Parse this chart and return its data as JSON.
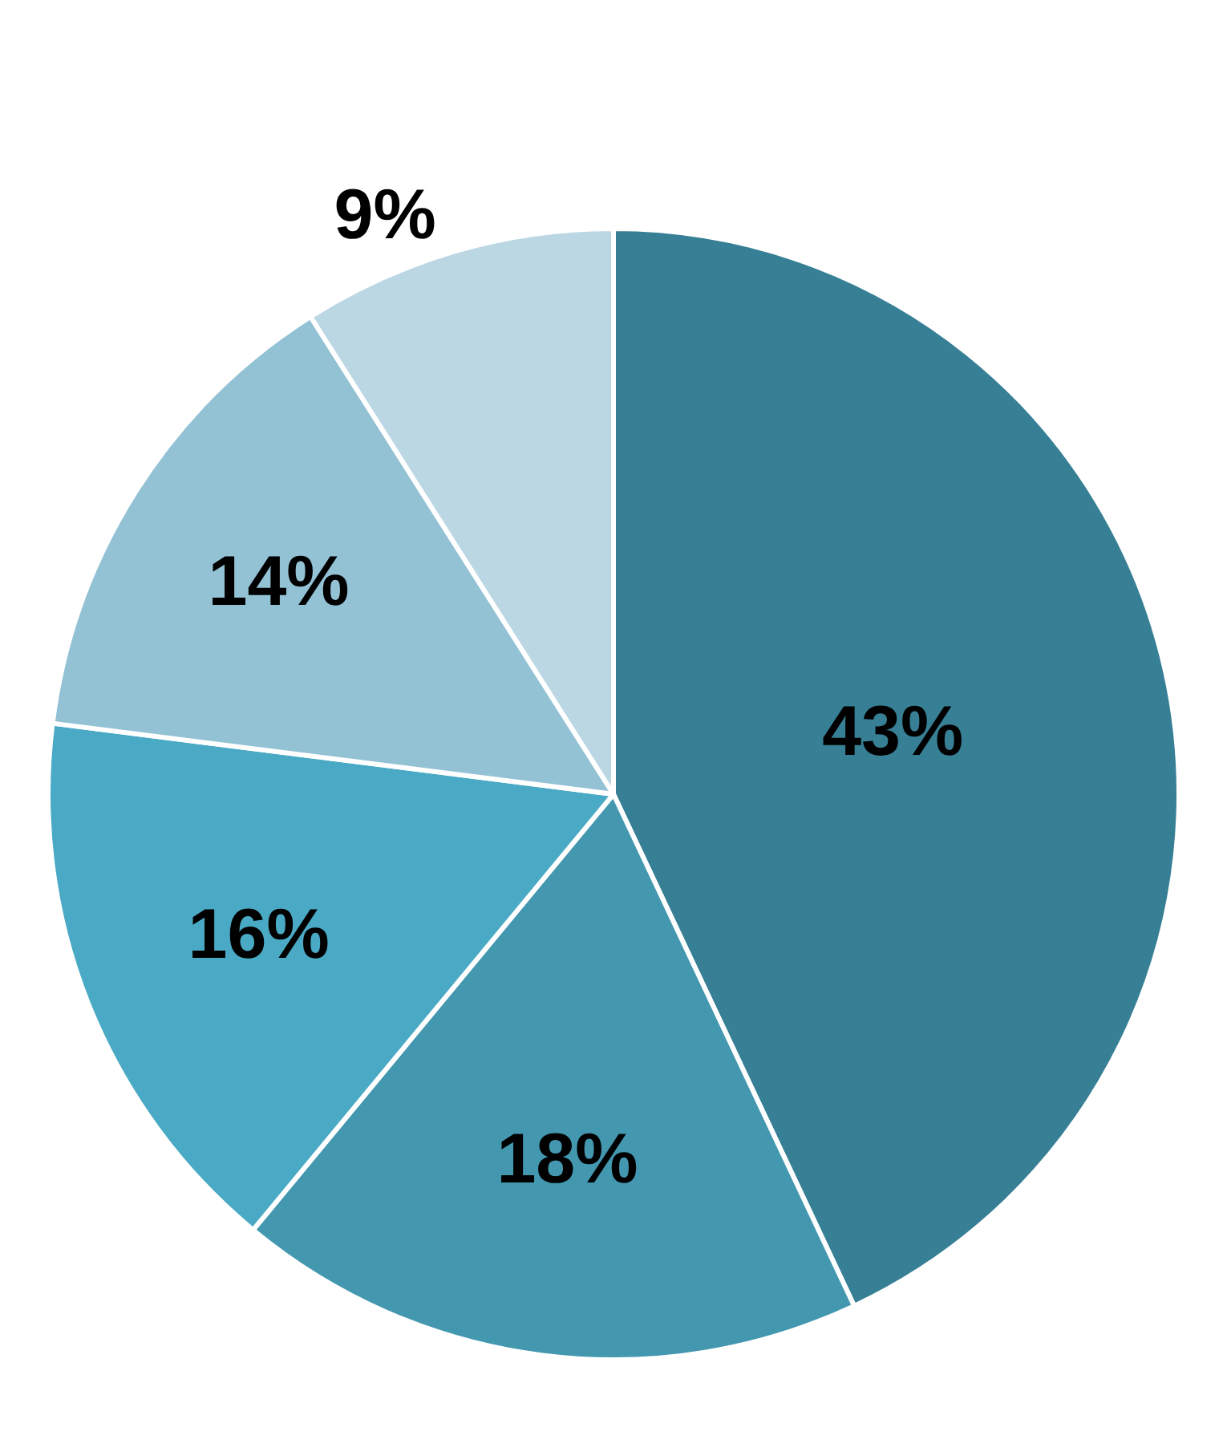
{
  "chart_data": {
    "type": "pie",
    "categories": [
      null,
      null,
      null,
      null,
      null
    ],
    "values": [
      43,
      18,
      16,
      14,
      9
    ],
    "colors": [
      "#377f95",
      "#4398b0",
      "#4aaac5",
      "#93c2d5",
      "#bcd7e4"
    ],
    "value_labels": [
      "43%",
      "18%",
      "16%",
      "14%",
      "9%"
    ]
  }
}
